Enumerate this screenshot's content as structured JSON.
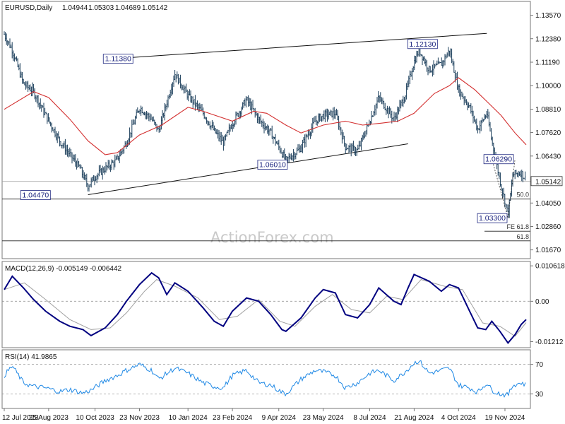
{
  "chart_data": [
    {
      "type": "candlestick",
      "panel": "price",
      "title": "EURUSD,Daily",
      "ohlc": {
        "open": "1.04944",
        "high": "1.05303",
        "low": "1.04689",
        "close": "1.05142"
      },
      "x_tick_labels": [
        "12 Jul 2023",
        "25 Aug 2023",
        "10 Oct 2023",
        "23 Nov 2023",
        "10 Jan 2024",
        "23 Feb 2024",
        "9 Apr 2024",
        "23 May 2024",
        "8 Jul 2024",
        "21 Aug 2024",
        "4 Oct 2024",
        "19 Nov 2024"
      ],
      "y_tick_labels": [
        "1.13570",
        "1.12380",
        "1.11190",
        "1.10000",
        "1.08810",
        "1.07620",
        "1.06430",
        "1.05142",
        "1.04050",
        "1.02860",
        "1.01670"
      ],
      "ylim": [
        1.013,
        1.142
      ],
      "current_price": 1.05142,
      "key_levels": [
        {
          "label": "1.04470",
          "value": 1.0447
        },
        {
          "label": "1.11380",
          "value": 1.1138
        },
        {
          "label": "1.06010",
          "value": 1.0601
        },
        {
          "label": "1.12130",
          "value": 1.1213
        },
        {
          "label": "1.06290",
          "value": 1.0629
        },
        {
          "label": "1.03300",
          "value": 1.033
        }
      ],
      "fib_labels": [
        {
          "label": "50.0",
          "value": 1.0425
        },
        {
          "label": "FE 61.8",
          "value": 1.0262
        },
        {
          "label": "61.8",
          "value": 1.0213
        }
      ],
      "trendlines": [
        {
          "from": {
            "x": "2023-10-03",
            "y": 1.0447
          },
          "to": {
            "x": "2024-08-15",
            "y": 1.0705
          }
        },
        {
          "from": {
            "x": "2023-11-01",
            "y": 1.1138
          },
          "to": {
            "x": "2024-11-01",
            "y": 1.1265
          }
        }
      ],
      "close_path": [
        [
          "2023-07-12",
          1.126
        ],
        [
          "2023-07-20",
          1.118
        ],
        [
          "2023-07-31",
          1.101
        ],
        [
          "2023-08-10",
          1.097
        ],
        [
          "2023-08-22",
          1.085
        ],
        [
          "2023-09-05",
          1.072
        ],
        [
          "2023-09-15",
          1.065
        ],
        [
          "2023-09-25",
          1.058
        ],
        [
          "2023-10-03",
          1.049
        ],
        [
          "2023-10-10",
          1.054
        ],
        [
          "2023-10-20",
          1.058
        ],
        [
          "2023-10-31",
          1.062
        ],
        [
          "2023-11-10",
          1.071
        ],
        [
          "2023-11-23",
          1.089
        ],
        [
          "2023-12-05",
          1.083
        ],
        [
          "2023-12-12",
          1.077
        ],
        [
          "2023-12-28",
          1.106
        ],
        [
          "2024-01-10",
          1.095
        ],
        [
          "2024-01-25",
          1.086
        ],
        [
          "2024-02-05",
          1.077
        ],
        [
          "2024-02-14",
          1.071
        ],
        [
          "2024-02-23",
          1.081
        ],
        [
          "2024-03-08",
          1.093
        ],
        [
          "2024-03-20",
          1.083
        ],
        [
          "2024-04-01",
          1.076
        ],
        [
          "2024-04-12",
          1.066
        ],
        [
          "2024-04-16",
          1.062
        ],
        [
          "2024-04-30",
          1.068
        ],
        [
          "2024-05-15",
          1.082
        ],
        [
          "2024-05-23",
          1.085
        ],
        [
          "2024-06-04",
          1.086
        ],
        [
          "2024-06-14",
          1.069
        ],
        [
          "2024-06-26",
          1.067
        ],
        [
          "2024-07-08",
          1.082
        ],
        [
          "2024-07-17",
          1.094
        ],
        [
          "2024-08-01",
          1.083
        ],
        [
          "2024-08-12",
          1.095
        ],
        [
          "2024-08-21",
          1.112
        ],
        [
          "2024-08-26",
          1.118
        ],
        [
          "2024-09-05",
          1.108
        ],
        [
          "2024-09-17",
          1.111
        ],
        [
          "2024-09-25",
          1.118
        ],
        [
          "2024-10-04",
          1.098
        ],
        [
          "2024-10-15",
          1.089
        ],
        [
          "2024-10-23",
          1.078
        ],
        [
          "2024-11-01",
          1.086
        ],
        [
          "2024-11-06",
          1.072
        ],
        [
          "2024-11-14",
          1.052
        ],
        [
          "2024-11-22",
          1.035
        ],
        [
          "2024-11-27",
          1.055
        ],
        [
          "2024-12-05",
          1.056
        ],
        [
          "2024-12-10",
          1.052
        ]
      ],
      "ma_path": [
        [
          "2023-07-12",
          1.088
        ],
        [
          "2023-08-10",
          1.097
        ],
        [
          "2023-08-25",
          1.094
        ],
        [
          "2023-09-15",
          1.083
        ],
        [
          "2023-10-03",
          1.072
        ],
        [
          "2023-10-20",
          1.065
        ],
        [
          "2023-11-01",
          1.066
        ],
        [
          "2023-11-23",
          1.075
        ],
        [
          "2023-12-15",
          1.08
        ],
        [
          "2024-01-10",
          1.089
        ],
        [
          "2024-01-25",
          1.087
        ],
        [
          "2024-02-23",
          1.082
        ],
        [
          "2024-03-15",
          1.087
        ],
        [
          "2024-03-28",
          1.086
        ],
        [
          "2024-04-16",
          1.08
        ],
        [
          "2024-05-01",
          1.076
        ],
        [
          "2024-05-23",
          1.08
        ],
        [
          "2024-06-14",
          1.082
        ],
        [
          "2024-07-01",
          1.08
        ],
        [
          "2024-07-20",
          1.081
        ],
        [
          "2024-08-05",
          1.082
        ],
        [
          "2024-08-21",
          1.086
        ],
        [
          "2024-09-10",
          1.096
        ],
        [
          "2024-09-25",
          1.1
        ],
        [
          "2024-10-04",
          1.104
        ],
        [
          "2024-10-20",
          1.098
        ],
        [
          "2024-11-01",
          1.092
        ],
        [
          "2024-11-15",
          1.085
        ],
        [
          "2024-11-29",
          1.076
        ],
        [
          "2024-12-10",
          1.07
        ]
      ]
    },
    {
      "type": "line",
      "panel": "macd",
      "label": "MACD(12,26,9) -0.005149 -0.006442",
      "y_tick_labels": [
        "0.010618",
        "0.00",
        "-0.01212"
      ],
      "ylim": [
        -0.0135,
        0.0115
      ],
      "series": [
        {
          "name": "MACD",
          "color": "#000080",
          "points": [
            [
              "2023-07-12",
              0.0035
            ],
            [
              "2023-07-20",
              0.0075
            ],
            [
              "2023-07-31",
              0.004
            ],
            [
              "2023-08-10",
              0.0005
            ],
            [
              "2023-08-22",
              -0.003
            ],
            [
              "2023-09-05",
              -0.006
            ],
            [
              "2023-09-15",
              -0.0075
            ],
            [
              "2023-09-28",
              -0.0085
            ],
            [
              "2023-10-06",
              -0.0103
            ],
            [
              "2023-10-20",
              -0.008
            ],
            [
              "2023-11-01",
              -0.004
            ],
            [
              "2023-11-10",
              0.0
            ],
            [
              "2023-11-23",
              0.005
            ],
            [
              "2023-12-05",
              0.0085
            ],
            [
              "2023-12-12",
              0.007
            ],
            [
              "2023-12-20",
              0.002
            ],
            [
              "2023-12-28",
              0.0055
            ],
            [
              "2024-01-10",
              0.003
            ],
            [
              "2024-01-25",
              -0.002
            ],
            [
              "2024-02-05",
              -0.006
            ],
            [
              "2024-02-14",
              -0.0075
            ],
            [
              "2024-02-23",
              -0.003
            ],
            [
              "2024-03-08",
              0.001
            ],
            [
              "2024-03-20",
              0.0
            ],
            [
              "2024-04-01",
              -0.004
            ],
            [
              "2024-04-12",
              -0.0085
            ],
            [
              "2024-04-16",
              -0.009
            ],
            [
              "2024-05-01",
              -0.005
            ],
            [
              "2024-05-15",
              0.001
            ],
            [
              "2024-05-23",
              0.0035
            ],
            [
              "2024-06-04",
              0.0025
            ],
            [
              "2024-06-14",
              -0.004
            ],
            [
              "2024-06-26",
              -0.005
            ],
            [
              "2024-07-08",
              -0.001
            ],
            [
              "2024-07-17",
              0.004
            ],
            [
              "2024-08-01",
              0.0
            ],
            [
              "2024-08-08",
              -0.001
            ],
            [
              "2024-08-15",
              0.004
            ],
            [
              "2024-08-21",
              0.008
            ],
            [
              "2024-09-05",
              0.006
            ],
            [
              "2024-09-17",
              0.003
            ],
            [
              "2024-09-25",
              0.005
            ],
            [
              "2024-10-04",
              0.004
            ],
            [
              "2024-10-15",
              -0.003
            ],
            [
              "2024-10-23",
              -0.008
            ],
            [
              "2024-10-31",
              -0.0085
            ],
            [
              "2024-11-06",
              -0.006
            ],
            [
              "2024-11-14",
              -0.009
            ],
            [
              "2024-11-22",
              -0.0125
            ],
            [
              "2024-11-29",
              -0.01
            ],
            [
              "2024-12-05",
              -0.007
            ],
            [
              "2024-12-10",
              -0.0055
            ]
          ]
        },
        {
          "name": "Signal",
          "color": "#a0a0a0",
          "points": [
            [
              "2023-07-12",
              0.0035
            ],
            [
              "2023-08-01",
              0.0055
            ],
            [
              "2023-08-22",
              0.0005
            ],
            [
              "2023-09-15",
              -0.0055
            ],
            [
              "2023-10-06",
              -0.0085
            ],
            [
              "2023-10-25",
              -0.008
            ],
            [
              "2023-11-10",
              -0.0035
            ],
            [
              "2023-11-28",
              0.003
            ],
            [
              "2023-12-10",
              0.0065
            ],
            [
              "2023-12-28",
              0.0045
            ],
            [
              "2024-01-20",
              0.001
            ],
            [
              "2024-02-10",
              -0.0055
            ],
            [
              "2024-02-28",
              -0.0045
            ],
            [
              "2024-03-20",
              0.0005
            ],
            [
              "2024-04-10",
              -0.006
            ],
            [
              "2024-04-25",
              -0.0075
            ],
            [
              "2024-05-15",
              -0.0015
            ],
            [
              "2024-06-01",
              0.002
            ],
            [
              "2024-06-20",
              -0.0025
            ],
            [
              "2024-07-08",
              -0.0035
            ],
            [
              "2024-07-25",
              0.0015
            ],
            [
              "2024-08-10",
              0.0005
            ],
            [
              "2024-08-28",
              0.0065
            ],
            [
              "2024-09-20",
              0.0045
            ],
            [
              "2024-10-08",
              0.0035
            ],
            [
              "2024-10-28",
              -0.0065
            ],
            [
              "2024-11-14",
              -0.0075
            ],
            [
              "2024-11-29",
              -0.0105
            ],
            [
              "2024-12-10",
              -0.0064
            ]
          ]
        }
      ]
    },
    {
      "type": "line",
      "panel": "rsi",
      "label": "RSI(14) 41.9865",
      "y_tick_labels": [
        "70",
        "30"
      ],
      "ylim": [
        12,
        88
      ],
      "series": [
        {
          "name": "RSI",
          "color": "#1e88e5",
          "points": [
            [
              "2023-07-12",
              55
            ],
            [
              "2023-07-20",
              68
            ],
            [
              "2023-07-31",
              45
            ],
            [
              "2023-08-10",
              40
            ],
            [
              "2023-08-22",
              38
            ],
            [
              "2023-09-05",
              33
            ],
            [
              "2023-09-15",
              36
            ],
            [
              "2023-09-28",
              31
            ],
            [
              "2023-10-06",
              35
            ],
            [
              "2023-10-20",
              48
            ],
            [
              "2023-11-01",
              55
            ],
            [
              "2023-11-10",
              62
            ],
            [
              "2023-11-23",
              70
            ],
            [
              "2023-12-05",
              62
            ],
            [
              "2023-12-12",
              50
            ],
            [
              "2023-12-28",
              65
            ],
            [
              "2024-01-10",
              58
            ],
            [
              "2024-01-25",
              45
            ],
            [
              "2024-02-05",
              40
            ],
            [
              "2024-02-14",
              38
            ],
            [
              "2024-02-23",
              55
            ],
            [
              "2024-03-08",
              62
            ],
            [
              "2024-03-20",
              45
            ],
            [
              "2024-04-01",
              42
            ],
            [
              "2024-04-12",
              32
            ],
            [
              "2024-04-16",
              30
            ],
            [
              "2024-05-01",
              50
            ],
            [
              "2024-05-15",
              62
            ],
            [
              "2024-05-23",
              60
            ],
            [
              "2024-06-04",
              55
            ],
            [
              "2024-06-14",
              38
            ],
            [
              "2024-06-26",
              45
            ],
            [
              "2024-07-08",
              58
            ],
            [
              "2024-07-17",
              62
            ],
            [
              "2024-08-01",
              48
            ],
            [
              "2024-08-12",
              60
            ],
            [
              "2024-08-21",
              72
            ],
            [
              "2024-08-26",
              75
            ],
            [
              "2024-09-05",
              58
            ],
            [
              "2024-09-17",
              62
            ],
            [
              "2024-09-25",
              65
            ],
            [
              "2024-10-04",
              42
            ],
            [
              "2024-10-15",
              38
            ],
            [
              "2024-10-23",
              32
            ],
            [
              "2024-11-01",
              45
            ],
            [
              "2024-11-06",
              35
            ],
            [
              "2024-11-14",
              30
            ],
            [
              "2024-11-22",
              28
            ],
            [
              "2024-11-27",
              42
            ],
            [
              "2024-12-05",
              45
            ],
            [
              "2024-12-10",
              42
            ]
          ]
        }
      ]
    }
  ],
  "watermark": "ActionForex.com",
  "colors": {
    "candle": "#1a3d5a",
    "ma": "#d32f2f",
    "macd": "#000080",
    "signal": "#a0a0a0",
    "rsi": "#1e88e5",
    "label_text": "#1a237e",
    "grid": "#9e9e9e"
  }
}
